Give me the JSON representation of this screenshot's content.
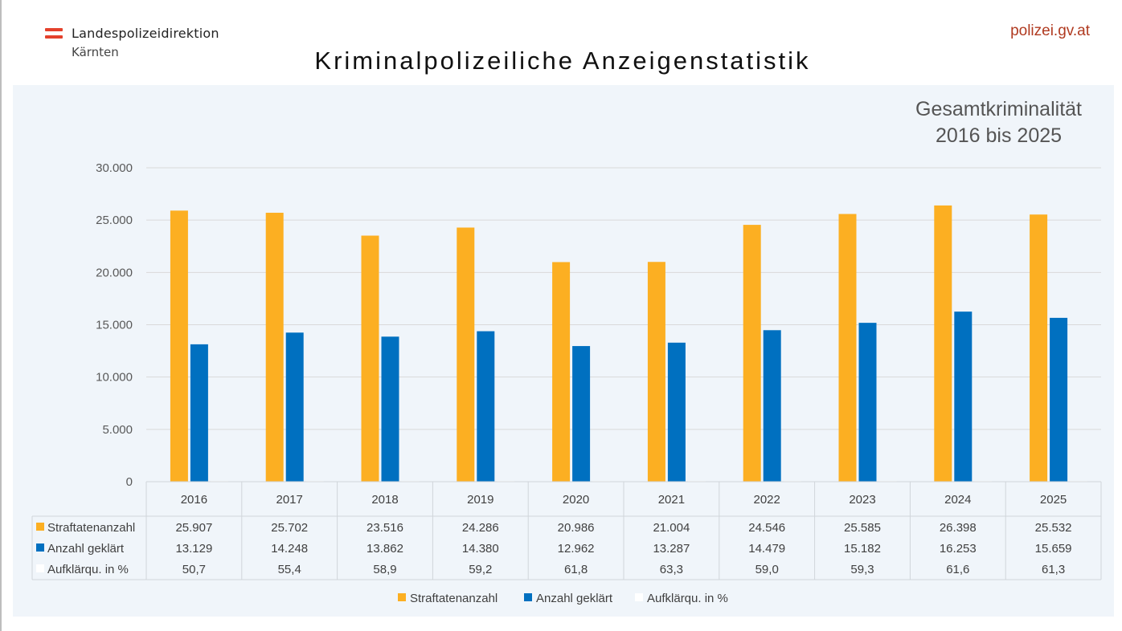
{
  "header": {
    "org_line1": "Landespolizeidirektion",
    "org_line2": "Kärnten",
    "site": "polizei.gv.at",
    "main_title": "Kriminalpolizeiliche Anzeigenstatistik"
  },
  "colors": {
    "series1": "#fcaf22",
    "series2": "#0070c0",
    "series3": "#ffffff",
    "brand_red": "#e4412c",
    "panel": "#f0f5fa"
  },
  "chart_data": {
    "type": "bar",
    "title": "Gesamtkriminalität",
    "subtitle": "2016 bis 2025",
    "xlabel": "",
    "ylabel": "",
    "ylim": [
      0,
      30000
    ],
    "yticks": [
      0,
      5000,
      10000,
      15000,
      20000,
      25000,
      30000
    ],
    "ytick_labels": [
      "0",
      "5.000",
      "10.000",
      "15.000",
      "20.000",
      "25.000",
      "30.000"
    ],
    "grid": true,
    "legend_position": "bottom",
    "categories": [
      "2016",
      "2017",
      "2018",
      "2019",
      "2020",
      "2021",
      "2022",
      "2023",
      "2024",
      "2025"
    ],
    "series": [
      {
        "name": "Straftatenanzahl",
        "color": "#fcaf22",
        "values": [
          25907,
          25702,
          23516,
          24286,
          20986,
          21004,
          24546,
          25585,
          26398,
          25532
        ],
        "labels": [
          "25.907",
          "25.702",
          "23.516",
          "24.286",
          "20.986",
          "21.004",
          "24.546",
          "25.585",
          "26.398",
          "25.532"
        ]
      },
      {
        "name": "Anzahl geklärt",
        "color": "#0070c0",
        "values": [
          13129,
          14248,
          13862,
          14380,
          12962,
          13287,
          14479,
          15182,
          16253,
          15659
        ],
        "labels": [
          "13.129",
          "14.248",
          "13.862",
          "14.380",
          "12.962",
          "13.287",
          "14.479",
          "15.182",
          "16.253",
          "15.659"
        ]
      },
      {
        "name": "Aufklärqu. in %",
        "color": "#ffffff",
        "values": [
          50.7,
          55.4,
          58.9,
          59.2,
          61.8,
          63.3,
          59.0,
          59.3,
          61.6,
          61.3
        ],
        "labels": [
          "50,7",
          "55,4",
          "58,9",
          "59,2",
          "61,8",
          "63,3",
          "59,0",
          "59,3",
          "61,6",
          "61,3"
        ]
      }
    ],
    "data_table": true
  }
}
